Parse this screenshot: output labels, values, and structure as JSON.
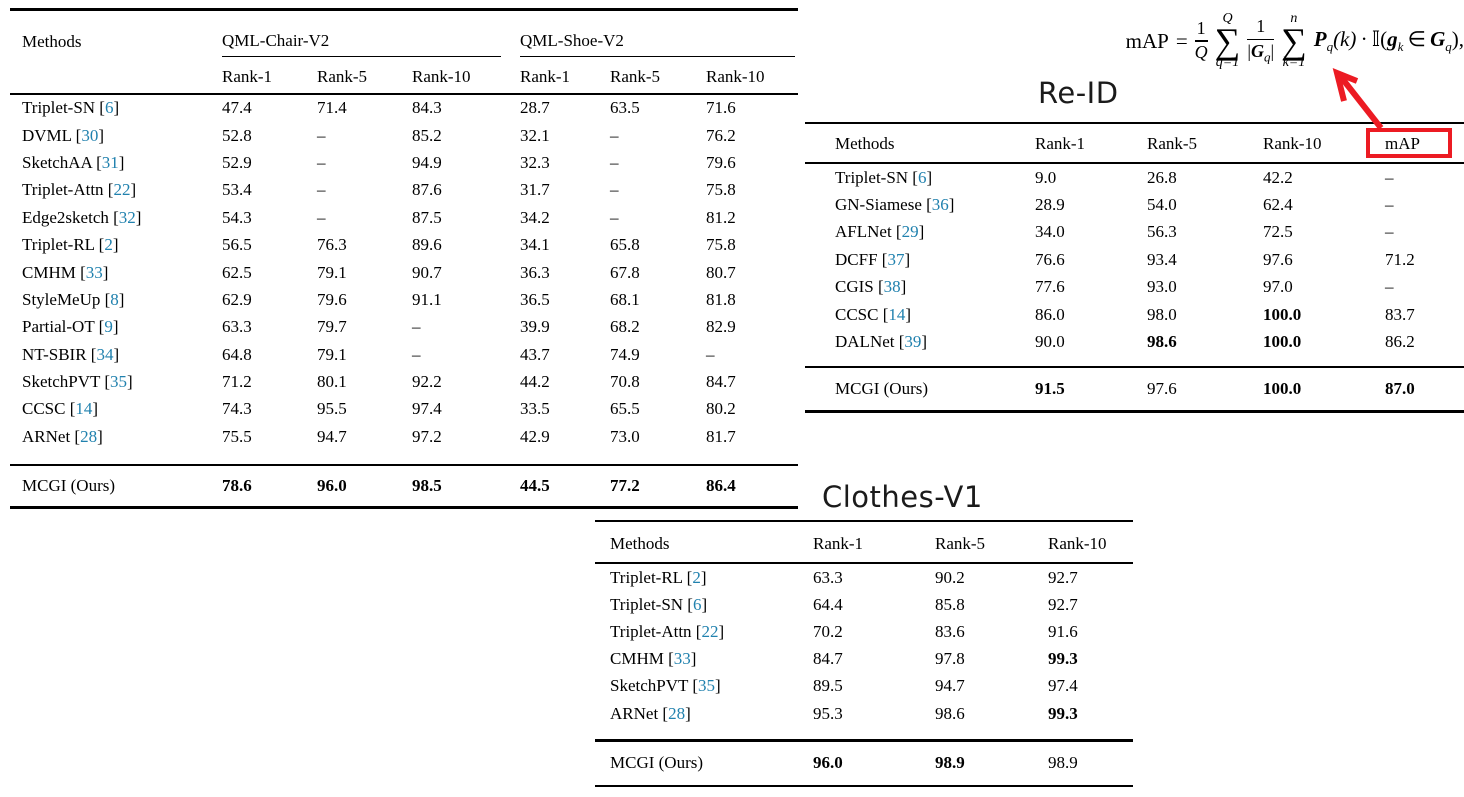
{
  "colors": {
    "citation": "#2081AE",
    "annotation_red": "#EC1B23",
    "text": "#000000"
  },
  "formula": {
    "text": "mAP = (1/Q) Σ_{q=1}^{Q} (1/|G_q|) Σ_{k=1}^{n} P_q(k) · 𝕀(g_k ∈ G_q),",
    "lhs": "mAP",
    "eq": "=",
    "f1n": "1",
    "f1d": "Q",
    "sigma": "∑",
    "s1top": "Q",
    "s1bot": "q=1",
    "f2n": "1",
    "f2d_bar1": "|",
    "f2d_G": "G",
    "f2d_sub": "q",
    "f2d_bar2": "|",
    "s2top": "n",
    "s2bot": "k=1",
    "P": "P",
    "P_sub": "q",
    "P_args": "(k)",
    "dot": "·",
    "indicator": "𝕀",
    "paren_g": "(",
    "g": "g",
    "g_sub": "k",
    "elem": "∈",
    "G": "G",
    "G_sub": "q",
    "close": "),"
  },
  "labels": {
    "reid": "Re-ID",
    "clothes": "Clothes-V1"
  },
  "qml_table": {
    "methods_header": "Methods",
    "group1": {
      "label": "QML-Chair-V2"
    },
    "group2": {
      "label": "QML-Shoe-V2"
    },
    "subheaders": [
      "Rank-1",
      "Rank-5",
      "Rank-10",
      "Rank-1",
      "Rank-5",
      "Rank-10"
    ],
    "rows": [
      {
        "method": "Triplet-SN",
        "cite": "6",
        "values": [
          "47.4",
          "71.4",
          "84.3",
          "28.7",
          "63.5",
          "71.6"
        ],
        "bold": []
      },
      {
        "method": "DVML",
        "cite": "30",
        "values": [
          "52.8",
          "–",
          "85.2",
          "32.1",
          "–",
          "76.2"
        ],
        "bold": []
      },
      {
        "method": "SketchAA",
        "cite": "31",
        "values": [
          "52.9",
          "–",
          "94.9",
          "32.3",
          "–",
          "79.6"
        ],
        "bold": []
      },
      {
        "method": "Triplet-Attn",
        "cite": "22",
        "values": [
          "53.4",
          "–",
          "87.6",
          "31.7",
          "–",
          "75.8"
        ],
        "bold": []
      },
      {
        "method": "Edge2sketch",
        "cite": "32",
        "values": [
          "54.3",
          "–",
          "87.5",
          "34.2",
          "–",
          "81.2"
        ],
        "bold": []
      },
      {
        "method": "Triplet-RL",
        "cite": "2",
        "values": [
          "56.5",
          "76.3",
          "89.6",
          "34.1",
          "65.8",
          "75.8"
        ],
        "bold": []
      },
      {
        "method": "CMHM",
        "cite": "33",
        "values": [
          "62.5",
          "79.1",
          "90.7",
          "36.3",
          "67.8",
          "80.7"
        ],
        "bold": []
      },
      {
        "method": "StyleMeUp",
        "cite": "8",
        "values": [
          "62.9",
          "79.6",
          "91.1",
          "36.5",
          "68.1",
          "81.8"
        ],
        "bold": []
      },
      {
        "method": "Partial-OT",
        "cite": "9",
        "values": [
          "63.3",
          "79.7",
          "–",
          "39.9",
          "68.2",
          "82.9"
        ],
        "bold": []
      },
      {
        "method": "NT-SBIR",
        "cite": "34",
        "values": [
          "64.8",
          "79.1",
          "–",
          "43.7",
          "74.9",
          "–"
        ],
        "bold": []
      },
      {
        "method": "SketchPVT",
        "cite": "35",
        "values": [
          "71.2",
          "80.1",
          "92.2",
          "44.2",
          "70.8",
          "84.7"
        ],
        "bold": []
      },
      {
        "method": "CCSC",
        "cite": "14",
        "values": [
          "74.3",
          "95.5",
          "97.4",
          "33.5",
          "65.5",
          "80.2"
        ],
        "bold": []
      },
      {
        "method": "ARNet",
        "cite": "28",
        "values": [
          "75.5",
          "94.7",
          "97.2",
          "42.9",
          "73.0",
          "81.7"
        ],
        "bold": []
      }
    ],
    "final": {
      "method": "MCGI (Ours)",
      "values": [
        "78.6",
        "96.0",
        "98.5",
        "44.5",
        "77.2",
        "86.4"
      ],
      "bold": [
        0,
        1,
        2,
        3,
        4,
        5
      ]
    }
  },
  "reid_table": {
    "headers": [
      "Methods",
      "Rank-1",
      "Rank-5",
      "Rank-10",
      "mAP"
    ],
    "rows": [
      {
        "method": "Triplet-SN",
        "cite": "6",
        "values": [
          "9.0",
          "26.8",
          "42.2",
          "–"
        ],
        "bold": []
      },
      {
        "method": "GN-Siamese",
        "cite": "36",
        "values": [
          "28.9",
          "54.0",
          "62.4",
          "–"
        ],
        "bold": []
      },
      {
        "method": "AFLNet",
        "cite": "29",
        "values": [
          "34.0",
          "56.3",
          "72.5",
          "–"
        ],
        "bold": []
      },
      {
        "method": "DCFF",
        "cite": "37",
        "values": [
          "76.6",
          "93.4",
          "97.6",
          "71.2"
        ],
        "bold": []
      },
      {
        "method": "CGIS",
        "cite": "38",
        "values": [
          "77.6",
          "93.0",
          "97.0",
          "–"
        ],
        "bold": []
      },
      {
        "method": "CCSC",
        "cite": "14",
        "values": [
          "86.0",
          "98.0",
          "100.0",
          "83.7"
        ],
        "bold": [
          2
        ]
      },
      {
        "method": "DALNet",
        "cite": "39",
        "values": [
          "90.0",
          "98.6",
          "100.0",
          "86.2"
        ],
        "bold": [
          1,
          2
        ]
      }
    ],
    "final": {
      "method": "MCGI (Ours)",
      "values": [
        "91.5",
        "97.6",
        "100.0",
        "87.0"
      ],
      "bold": [
        0,
        2,
        3
      ]
    }
  },
  "clothes_table": {
    "headers": [
      "Methods",
      "Rank-1",
      "Rank-5",
      "Rank-10"
    ],
    "rows": [
      {
        "method": "Triplet-RL",
        "cite": "2",
        "values": [
          "63.3",
          "90.2",
          "92.7"
        ],
        "bold": []
      },
      {
        "method": "Triplet-SN",
        "cite": "6",
        "values": [
          "64.4",
          "85.8",
          "92.7"
        ],
        "bold": []
      },
      {
        "method": "Triplet-Attn",
        "cite": "22",
        "values": [
          "70.2",
          "83.6",
          "91.6"
        ],
        "bold": []
      },
      {
        "method": "CMHM",
        "cite": "33",
        "values": [
          "84.7",
          "97.8",
          "99.3"
        ],
        "bold": [
          2
        ]
      },
      {
        "method": "SketchPVT",
        "cite": "35",
        "values": [
          "89.5",
          "94.7",
          "97.4"
        ],
        "bold": []
      },
      {
        "method": "ARNet",
        "cite": "28",
        "values": [
          "95.3",
          "98.6",
          "99.3"
        ],
        "bold": [
          2
        ]
      }
    ],
    "final": {
      "method": "MCGI (Ours)",
      "values": [
        "96.0",
        "98.9",
        "98.9"
      ],
      "bold": [
        0,
        1
      ]
    }
  }
}
